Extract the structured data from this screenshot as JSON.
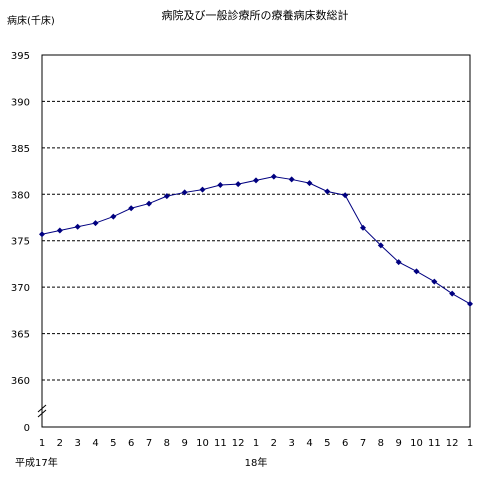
{
  "chart_data": {
    "type": "line",
    "title": "病院及び一般診療所の療養病床数総計",
    "ylabel": "病床(千床)",
    "xlabel": "",
    "ylim": [
      355,
      395
    ],
    "y_ticks": [
      360,
      365,
      370,
      375,
      380,
      385,
      390,
      395
    ],
    "y_break_label": "0",
    "grid": "horizontal-dashed",
    "categories": [
      "1",
      "2",
      "3",
      "4",
      "5",
      "6",
      "7",
      "8",
      "9",
      "10",
      "11",
      "12",
      "1",
      "2",
      "3",
      "4",
      "5",
      "6",
      "7",
      "8",
      "9",
      "10",
      "11",
      "12",
      "1"
    ],
    "year_labels": [
      {
        "index": 0,
        "text": "平成17年"
      },
      {
        "index": 12,
        "text": "18年"
      }
    ],
    "series": [
      {
        "color": "#000080",
        "values": [
          375.7,
          376.1,
          376.5,
          376.9,
          377.6,
          378.5,
          379.0,
          379.8,
          380.2,
          380.5,
          381.0,
          381.1,
          381.5,
          381.9,
          381.6,
          381.2,
          380.3,
          379.9,
          376.4,
          374.5,
          372.7,
          371.7,
          370.6,
          369.3,
          368.2
        ]
      }
    ]
  }
}
